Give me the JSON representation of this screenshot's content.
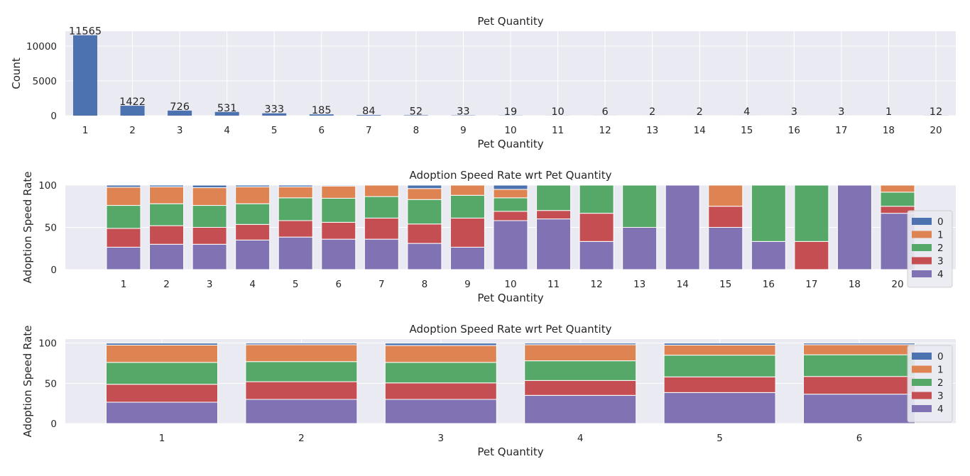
{
  "colors": {
    "plot_bg": "#EAEAF2",
    "grid": "#FFFFFF",
    "speed_0": "#4C72B0",
    "speed_1": "#DD8452",
    "speed_2": "#55A868",
    "speed_3": "#C44E52",
    "speed_4": "#8172B3",
    "legend_bg": "#EAEAF2",
    "legend_border": "#CCCCCC"
  },
  "chart_data": [
    {
      "type": "bar",
      "title": "Pet Quantity",
      "xlabel": "Pet Quantity",
      "ylabel": "Count",
      "categories": [
        "1",
        "2",
        "3",
        "4",
        "5",
        "6",
        "7",
        "8",
        "9",
        "10",
        "11",
        "12",
        "13",
        "14",
        "15",
        "16",
        "17",
        "18",
        "20"
      ],
      "values": [
        11565,
        1422,
        726,
        531,
        333,
        185,
        84,
        52,
        33,
        19,
        10,
        6,
        2,
        2,
        4,
        3,
        3,
        1,
        12
      ],
      "data_labels": [
        "11565",
        "1422",
        "726",
        "531",
        "333",
        "185",
        "84",
        "52",
        "33",
        "19",
        "10",
        "6",
        "2",
        "2",
        "4",
        "3",
        "3",
        "1",
        "12"
      ],
      "yticks": [
        0,
        5000,
        10000
      ],
      "ytick_labels": [
        "0",
        "5000",
        "10000"
      ],
      "ylim": [
        0,
        12143
      ],
      "grid": true
    },
    {
      "type": "bar",
      "stacked": true,
      "title": "Adoption Speed Rate wrt Pet Quantity",
      "xlabel": "Pet Quantity",
      "ylabel": "Adoption Speed Rate",
      "categories": [
        "1",
        "2",
        "3",
        "4",
        "5",
        "6",
        "7",
        "8",
        "9",
        "10",
        "11",
        "12",
        "13",
        "14",
        "15",
        "16",
        "17",
        "18",
        "20"
      ],
      "series": [
        {
          "name": "4",
          "values": [
            26.5,
            30,
            30,
            35,
            38.5,
            36,
            36,
            31,
            26.5,
            58,
            60,
            33.3,
            50,
            100,
            50,
            33.3,
            0,
            100,
            66.7
          ]
        },
        {
          "name": "3",
          "values": [
            22.3,
            22,
            20,
            18.5,
            19.5,
            20,
            25,
            23,
            34.5,
            11,
            10,
            33.4,
            0,
            0,
            25,
            0,
            33.3,
            0,
            8.3
          ]
        },
        {
          "name": "2",
          "values": [
            27.2,
            26,
            26,
            24.5,
            27,
            28.5,
            25.5,
            29,
            27,
            16,
            30,
            33.3,
            50,
            0,
            0,
            66.7,
            66.7,
            0,
            16.7
          ]
        },
        {
          "name": "1",
          "values": [
            21.5,
            20,
            21,
            20,
            13,
            14.5,
            13.5,
            13,
            12,
            10,
            0,
            0,
            0,
            0,
            25,
            0,
            0,
            0,
            8.3
          ]
        },
        {
          "name": "0",
          "values": [
            2.5,
            2,
            3,
            2,
            2,
            1,
            0,
            4,
            0,
            5,
            0,
            0,
            0,
            0,
            0,
            0,
            0,
            0,
            0
          ]
        }
      ],
      "legend": [
        "0",
        "1",
        "2",
        "3",
        "4"
      ],
      "legend_position": "right",
      "yticks": [
        0,
        50,
        100
      ],
      "ytick_labels": [
        "0",
        "50",
        "100"
      ],
      "ylim": [
        0,
        100
      ],
      "grid": true
    },
    {
      "type": "bar",
      "stacked": true,
      "title": "Adoption Speed Rate wrt Pet Quantity",
      "xlabel": "Pet Quantity",
      "ylabel": "Adoption Speed Rate",
      "categories": [
        "1",
        "2",
        "3",
        "4",
        "5",
        "6"
      ],
      "series": [
        {
          "name": "4",
          "values": [
            26.5,
            30,
            30,
            35,
            38.5,
            36.5
          ]
        },
        {
          "name": "3",
          "values": [
            22.3,
            22,
            20.5,
            18.5,
            19.5,
            22
          ]
        },
        {
          "name": "2",
          "values": [
            27.2,
            25,
            25.5,
            24.5,
            27,
            27
          ]
        },
        {
          "name": "1",
          "values": [
            21.5,
            21,
            21,
            20,
            12.5,
            12.5
          ]
        },
        {
          "name": "0",
          "values": [
            2.5,
            2,
            3,
            2,
            2.5,
            2
          ]
        }
      ],
      "legend": [
        "0",
        "1",
        "2",
        "3",
        "4"
      ],
      "legend_position": "right",
      "yticks": [
        0,
        50,
        100
      ],
      "ytick_labels": [
        "0",
        "50",
        "100"
      ],
      "ylim": [
        0,
        105
      ],
      "grid": true
    }
  ]
}
